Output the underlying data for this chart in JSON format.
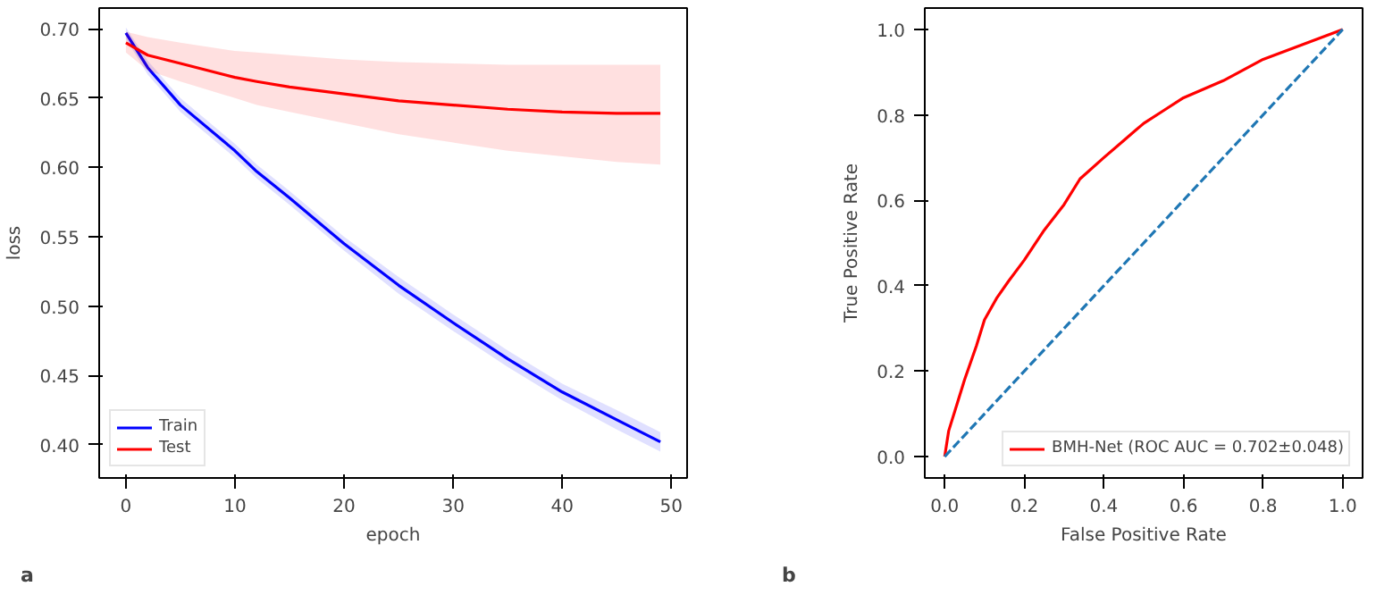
{
  "chart_data": [
    {
      "type": "line",
      "xlabel": "epoch",
      "ylabel": "loss",
      "annotations": [
        "a"
      ],
      "legend": "bottom left",
      "grid": false,
      "x": [
        0,
        2,
        5,
        10,
        12,
        15,
        20,
        25,
        30,
        35,
        40,
        45,
        49
      ],
      "xlim": [
        -2.45,
        51.45
      ],
      "ylim": [
        0.376,
        0.715
      ],
      "xticks": [
        0,
        10,
        20,
        30,
        40,
        50
      ],
      "yticks": [
        {
          "value": 0.4,
          "label": "0.40"
        },
        {
          "value": 0.45,
          "label": "0.45"
        },
        {
          "value": 0.5,
          "label": "0.50"
        },
        {
          "value": 0.55,
          "label": "0.55"
        },
        {
          "value": 0.6,
          "label": "0.60"
        },
        {
          "value": 0.65,
          "label": "0.65"
        },
        {
          "value": 0.7,
          "label": "0.70"
        }
      ],
      "series": [
        {
          "name": "Train",
          "color": "#0000ff",
          "values": [
            0.697,
            0.672,
            0.645,
            0.612,
            0.597,
            0.578,
            0.545,
            0.515,
            0.488,
            0.462,
            0.438,
            0.418,
            0.402
          ],
          "lower": [
            0.693,
            0.667,
            0.64,
            0.607,
            0.592,
            0.573,
            0.54,
            0.509,
            0.482,
            0.456,
            0.432,
            0.411,
            0.395
          ],
          "upper": [
            0.701,
            0.677,
            0.65,
            0.617,
            0.602,
            0.583,
            0.55,
            0.521,
            0.494,
            0.468,
            0.444,
            0.425,
            0.409
          ]
        },
        {
          "name": "Test",
          "color": "#ff0000",
          "values": [
            0.69,
            0.681,
            0.675,
            0.665,
            0.662,
            0.658,
            0.653,
            0.648,
            0.645,
            0.642,
            0.64,
            0.639,
            0.639
          ],
          "lower": [
            0.683,
            0.67,
            0.662,
            0.65,
            0.645,
            0.64,
            0.632,
            0.624,
            0.618,
            0.612,
            0.608,
            0.604,
            0.602
          ],
          "upper": [
            0.698,
            0.694,
            0.69,
            0.684,
            0.683,
            0.681,
            0.678,
            0.676,
            0.675,
            0.674,
            0.674,
            0.674,
            0.674
          ]
        }
      ]
    },
    {
      "type": "line",
      "xlabel": "False Positive Rate",
      "ylabel": "True Positive Rate",
      "annotations": [
        "b"
      ],
      "legend": "bottom right",
      "grid": false,
      "xlim": [
        -0.05,
        1.05
      ],
      "ylim": [
        -0.05,
        1.05
      ],
      "xticks": [
        {
          "value": 0,
          "label": "0.0"
        },
        0.2,
        0.4,
        0.6,
        0.8,
        {
          "value": 1,
          "label": "1.0"
        }
      ],
      "yticks": [
        {
          "value": 0,
          "label": "0.0"
        },
        0.2,
        0.4,
        0.6,
        0.8,
        {
          "value": 1,
          "label": "1.0"
        }
      ],
      "series": [
        {
          "name": "BMH-Net (ROC AUC = 0.702±0.048)",
          "color": "#ff0000",
          "x": [
            0,
            0.01,
            0.03,
            0.05,
            0.08,
            0.1,
            0.13,
            0.16,
            0.2,
            0.25,
            0.3,
            0.34,
            0.4,
            0.45,
            0.5,
            0.55,
            0.6,
            0.7,
            0.8,
            0.9,
            1
          ],
          "values": [
            0,
            0.06,
            0.12,
            0.18,
            0.26,
            0.32,
            0.37,
            0.41,
            0.46,
            0.53,
            0.59,
            0.65,
            0.7,
            0.74,
            0.78,
            0.81,
            0.84,
            0.88,
            0.93,
            0.965,
            1
          ]
        },
        {
          "color": "#1f77b4",
          "line_style": "dashed",
          "x": [
            0,
            1
          ],
          "values": [
            0,
            1
          ]
        }
      ]
    }
  ]
}
